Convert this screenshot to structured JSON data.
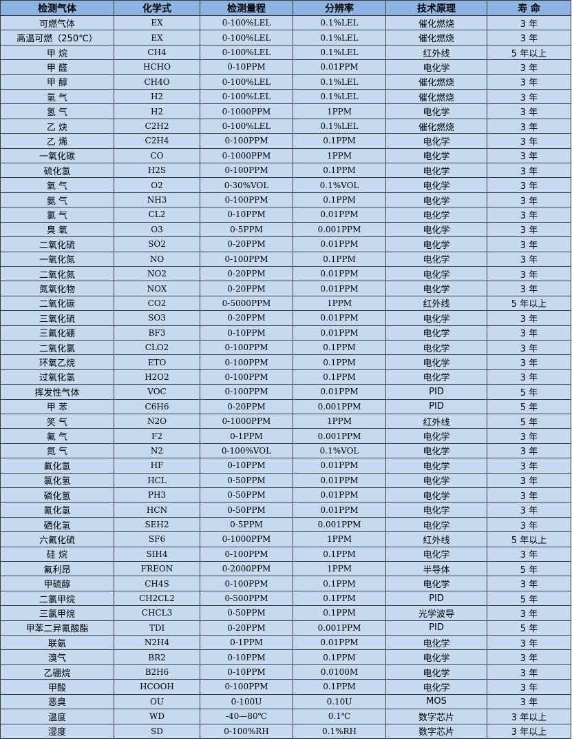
{
  "table": {
    "colors": {
      "header_bg": "#8db4e2",
      "row_bg": "#c5d9f1"
    },
    "headers": [
      "检测气体",
      "化学式",
      "检测量程",
      "分辨率",
      "技术原理",
      "寿 命"
    ],
    "rows": [
      [
        "可燃气体",
        "EX",
        "0-100%LEL",
        "0.1%LEL",
        "催化燃烧",
        "3 年"
      ],
      [
        "高温可燃（250℃）",
        "EX",
        "0-100%LEL",
        "0.1%LEL",
        "催化燃烧",
        "3 年"
      ],
      [
        "甲 烷",
        "CH4",
        "0-100%LEL",
        "0.1%LEL",
        "红外线",
        "5 年以上"
      ],
      [
        "甲 醛",
        "HCHO",
        "0-10PPM",
        "0.01PPM",
        "电化学",
        "3 年"
      ],
      [
        "甲 醇",
        "CH4O",
        "0-100%LEL",
        "0.1%LEL",
        "催化燃烧",
        "3 年"
      ],
      [
        "氢 气",
        "H2",
        "0-100%LEL",
        "0.1%LEL",
        "催化燃烧",
        "3 年"
      ],
      [
        "氢 气",
        "H2",
        "0-1000PPM",
        "1PPM",
        "电化学",
        "3 年"
      ],
      [
        "乙 炔",
        "C2H2",
        "0-100%LEL",
        "0.1%LEL",
        "催化燃烧",
        "3 年"
      ],
      [
        "乙 烯",
        "C2H4",
        "0-100PPM",
        "0.1PPM",
        "电化学",
        "3 年"
      ],
      [
        "一氧化碳",
        "CO",
        "0-1000PPM",
        "1PPM",
        "电化学",
        "3 年"
      ],
      [
        "硫化氢",
        "H2S",
        "0-100PPM",
        "0.1PPM",
        "电化学",
        "3 年"
      ],
      [
        "氧 气",
        "O2",
        "0-30%VOL",
        "0.1%VOL",
        "电化学",
        "3 年"
      ],
      [
        "氨 气",
        "NH3",
        "0-100PPM",
        "0.1PPM",
        "电化学",
        "3 年"
      ],
      [
        "氯 气",
        "CL2",
        "0-10PPM",
        "0.01PPM",
        "电化学",
        "3 年"
      ],
      [
        "臭 氧",
        "O3",
        "0-5PPM",
        "0.001PPM",
        "电化学",
        "3 年"
      ],
      [
        "二氧化硫",
        "SO2",
        "0-20PPM",
        "0.01PPM",
        "电化学",
        "3 年"
      ],
      [
        "一氧化氮",
        "NO",
        "0-100PPM",
        "0.1PPM",
        "电化学",
        "3 年"
      ],
      [
        "二氧化氮",
        "NO2",
        "0-20PPM",
        "0.01PPM",
        "电化学",
        "3 年"
      ],
      [
        "氮氧化物",
        "NOX",
        "0-20PPM",
        "0.01PPM",
        "电化学",
        "3 年"
      ],
      [
        "二氧化碳",
        "CO2",
        "0-5000PPM",
        "1PPM",
        "红外线",
        "5 年以上"
      ],
      [
        "三氧化硫",
        "SO3",
        "0-20PPM",
        "0.01PPM",
        "电化学",
        "3 年"
      ],
      [
        "三氟化硼",
        "BF3",
        "0-10PPM",
        "0.01PPM",
        "电化学",
        "3 年"
      ],
      [
        "二氧化氯",
        "CLO2",
        "0-100PPM",
        "0.1PPM",
        "电化学",
        "3 年"
      ],
      [
        "环氧乙烷",
        "ETO",
        "0-100PPM",
        "0.1PPM",
        "电化学",
        "3 年"
      ],
      [
        "过氧化氢",
        "H2O2",
        "0-100PPM",
        "0.1PPM",
        "电化学",
        "3 年"
      ],
      [
        "挥发性气体",
        "VOC",
        "0-100PPM",
        "0.01PPM",
        "PID",
        "5 年"
      ],
      [
        "甲 苯",
        "C6H6",
        "0-20PPM",
        "0.001PPM",
        "PID",
        "5 年"
      ],
      [
        "笑 气",
        "N2O",
        "0-1000PPM",
        "1PPM",
        "红外线",
        "5 年"
      ],
      [
        "氟 气",
        "F2",
        "0-1PPM",
        "0.001PPM",
        "电化学",
        "3 年"
      ],
      [
        "氮 气",
        "N2",
        "0-100%VOL",
        "0.1%VOL",
        "电化学",
        "3 年"
      ],
      [
        "氟化氢",
        "HF",
        "0-10PPM",
        "0.01PPM",
        "电化学",
        "3 年"
      ],
      [
        "氯化氢",
        "HCL",
        "0-50PPM",
        "0.01PPM",
        "电化学",
        "3 年"
      ],
      [
        "磷化氢",
        "PH3",
        "0-50PPM",
        "0.01PPM",
        "电化学",
        "3 年"
      ],
      [
        "氰化氢",
        "HCN",
        "0-50PPM",
        "0.01PPM",
        "电化学",
        "3 年"
      ],
      [
        "硒化氢",
        "SEH2",
        "0-5PPM",
        "0.001PPM",
        "电化学",
        "3 年"
      ],
      [
        "六氟化硫",
        "SF6",
        "0-1000PPM",
        "1PPM",
        "红外线",
        "5 年以上"
      ],
      [
        "硅 烷",
        "SIH4",
        "0-100PPM",
        "0.1PPM",
        "电化学",
        "3 年"
      ],
      [
        "氟利昂",
        "FREON",
        "0-2000PPM",
        "1PPM",
        "半导体",
        "5 年"
      ],
      [
        "甲硫醇",
        "CH4S",
        "0-100PPM",
        "0.1PPM",
        "电化学",
        "3 年"
      ],
      [
        "二氯甲烷",
        "CH2CL2",
        "0-500PPM",
        "0.1PPM",
        "PID",
        "5 年"
      ],
      [
        "三氯甲烷",
        "CHCL3",
        "0-50PPM",
        "0.1PPM",
        "光学波导",
        "3 年"
      ],
      [
        "甲苯二异氰酸酯",
        "TDI",
        "0-20PPM",
        "0.001PPM",
        "PID",
        "5 年"
      ],
      [
        "联氨",
        "N2H4",
        "0-1PPM",
        "0.01PPM",
        "电化学",
        "3 年"
      ],
      [
        "溴气",
        "BR2",
        "0-10PPM",
        "0.1PPM",
        "电化学",
        "3 年"
      ],
      [
        "乙硼烷",
        "B2H6",
        "0-10PPM",
        "0.0100M",
        "电化学",
        "3 年"
      ],
      [
        "甲酸",
        "HCOOH",
        "0-100PPM",
        "0.1PPM",
        "电化学",
        "3 年"
      ],
      [
        "恶臭",
        "OU",
        "0-100U",
        "0.10U",
        "MOS",
        "3 年"
      ],
      [
        "温度",
        "WD",
        "-40—80℃",
        "0.1℃",
        "数字芯片",
        "3 年以上"
      ],
      [
        "湿度",
        "SD",
        "0-100%RH",
        "0.1%RH",
        "数字芯片",
        "3 年以上"
      ]
    ]
  }
}
